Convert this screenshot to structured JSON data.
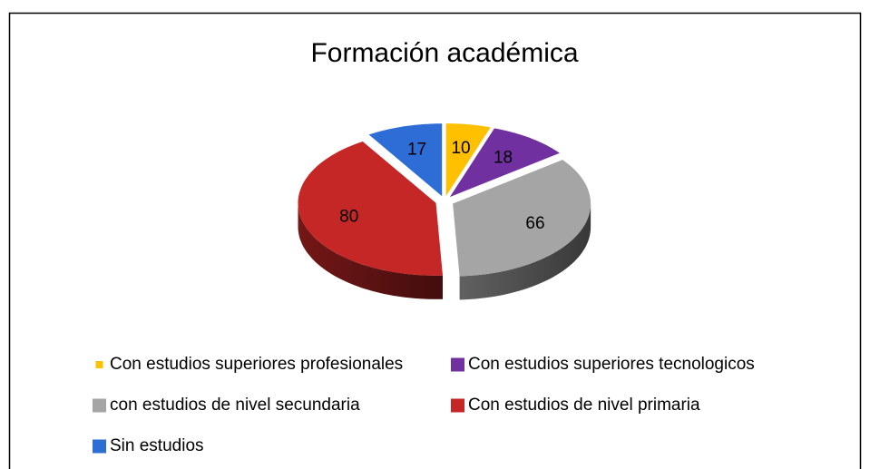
{
  "chart_data": {
    "type": "pie",
    "title": "Formación académica",
    "categories": [
      "Con estudios superiores profesionales",
      "Con estudios superiores tecnologicos",
      "con estudios de nivel secundaria",
      "Con estudios de nivel primaria",
      "Sin estudios"
    ],
    "values": [
      10,
      18,
      66,
      80,
      17
    ],
    "colors": [
      "#FFC000",
      "#7030A0",
      "#A5A5A5",
      "#C42726",
      "#2E6CD6"
    ],
    "legend": "bottom"
  }
}
